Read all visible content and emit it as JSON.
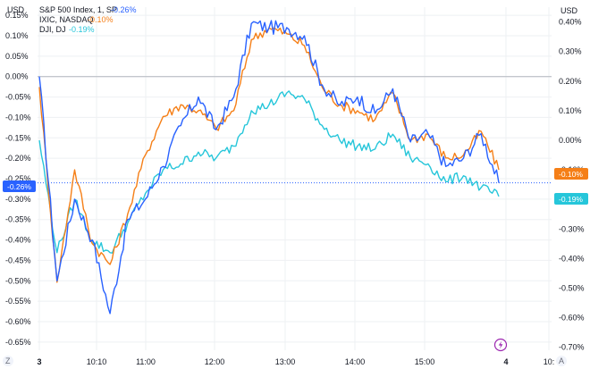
{
  "left_axis": {
    "unit": "USD",
    "ticks": [
      "0.15%",
      "0.10%",
      "0.05%",
      "0.00%",
      "-0.05%",
      "-0.10%",
      "-0.15%",
      "-0.20%",
      "-0.25%",
      "-0.30%",
      "-0.35%",
      "-0.40%",
      "-0.45%",
      "-0.50%",
      "-0.55%",
      "-0.60%",
      "-0.65%"
    ]
  },
  "right_axis": {
    "unit": "USD",
    "ticks": [
      "0.40%",
      "0.30%",
      "0.20%",
      "0.10%",
      "0.00%",
      "-0.10%",
      "-0.20%",
      "-0.30%",
      "-0.40%",
      "-0.50%",
      "-0.60%",
      "-0.70%"
    ]
  },
  "time_axis": {
    "labels": [
      "3",
      "10:10",
      "11:00",
      "12:00",
      "13:00",
      "14:00",
      "15:00",
      "4",
      "10:"
    ]
  },
  "corner_buttons": {
    "left": "Z",
    "right": "A"
  },
  "badges": {
    "left": "-0.26%",
    "right_orange": "-0.10%",
    "right_teal": "-0.19%"
  },
  "colors": {
    "spx": "#2962ff",
    "ixic": "#f57f17",
    "dji": "#26c6da",
    "grid": "#eef0f3",
    "zero_line": "#b2b5be",
    "event_marker": "#9c27b0"
  },
  "chart_data": {
    "type": "line",
    "x": [
      "09:30",
      "09:45",
      "10:00",
      "10:15",
      "10:30",
      "10:45",
      "11:00",
      "11:15",
      "11:30",
      "11:45",
      "12:00",
      "12:15",
      "12:30",
      "12:45",
      "13:00",
      "13:15",
      "13:30",
      "13:45",
      "14:00",
      "14:15",
      "14:30",
      "14:45",
      "15:00",
      "15:15",
      "15:30",
      "15:45",
      "16:00"
    ],
    "x_tick_labels": [
      "3",
      "10:10",
      "11:00",
      "12:00",
      "13:00",
      "14:00",
      "15:00",
      "4",
      "10:"
    ],
    "left_ylim": [
      -0.67,
      0.17
    ],
    "right_ylim": [
      -0.71,
      0.45
    ],
    "grid": true,
    "legend_position": "top-left",
    "series": [
      {
        "name": "S&P 500 Index, 1, SP",
        "last": "-0.26%",
        "axis": "left",
        "values": [
          0.0,
          -0.5,
          -0.3,
          -0.4,
          -0.58,
          -0.35,
          -0.3,
          -0.22,
          -0.12,
          -0.05,
          -0.13,
          -0.05,
          0.13,
          0.12,
          0.12,
          0.1,
          -0.02,
          -0.07,
          -0.05,
          -0.09,
          -0.03,
          -0.16,
          -0.14,
          -0.22,
          -0.2,
          -0.14,
          -0.26
        ]
      },
      {
        "name": "IXIC, NASDAQ",
        "last": "-0.10%",
        "axis": "right",
        "values": [
          0.18,
          -0.48,
          -0.1,
          -0.35,
          -0.42,
          -0.25,
          -0.05,
          0.08,
          0.12,
          0.1,
          0.04,
          0.1,
          0.34,
          0.38,
          0.36,
          0.32,
          0.18,
          0.12,
          0.1,
          0.07,
          0.16,
          0.0,
          0.02,
          -0.06,
          -0.05,
          0.03,
          -0.1
        ]
      },
      {
        "name": "DJI, DJ",
        "last": "-0.19%",
        "axis": "right",
        "values": [
          0.0,
          -0.38,
          -0.2,
          -0.34,
          -0.38,
          -0.28,
          -0.18,
          -0.1,
          -0.08,
          -0.04,
          -0.06,
          -0.02,
          0.1,
          0.12,
          0.16,
          0.14,
          0.05,
          0.0,
          -0.02,
          -0.03,
          0.02,
          -0.06,
          -0.08,
          -0.14,
          -0.12,
          -0.16,
          -0.19
        ]
      }
    ]
  }
}
